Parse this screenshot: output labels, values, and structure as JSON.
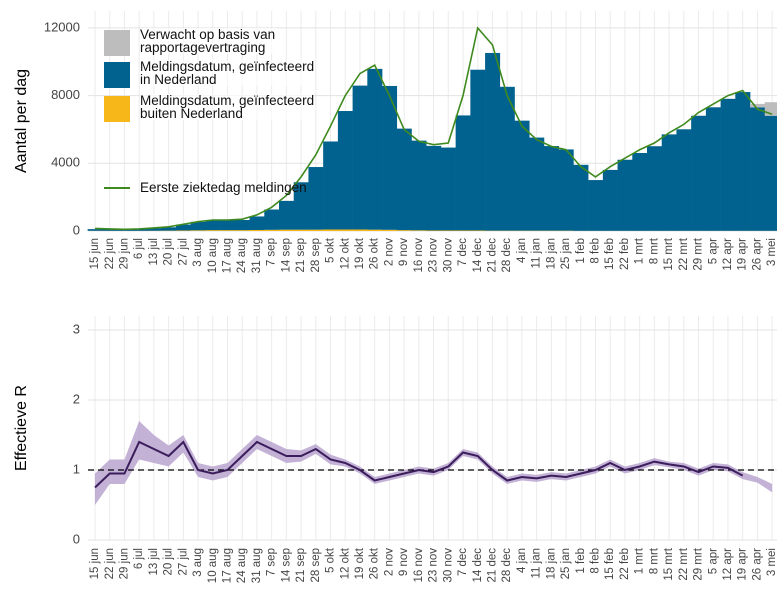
{
  "chart_data": [
    {
      "type": "bar",
      "stacked": true,
      "y_label": "Aantal per dag",
      "categories": [
        "15 jun",
        "22 jun",
        "29 jun",
        "6 jul",
        "13 jul",
        "20 jul",
        "27 jul",
        "3 aug",
        "10 aug",
        "17 aug",
        "24 aug",
        "31 aug",
        "7 sep",
        "14 sep",
        "21 sep",
        "28 sep",
        "5 okt",
        "12 okt",
        "19 okt",
        "26 okt",
        "2 nov",
        "9 nov",
        "16 nov",
        "23 nov",
        "30 nov",
        "7 dec",
        "14 dec",
        "21 dec",
        "28 dec",
        "4 jan",
        "11 jan",
        "18 jan",
        "25 jan",
        "1 feb",
        "8 feb",
        "15 feb",
        "22 feb",
        "1 mrt",
        "8 mrt",
        "15 mrt",
        "22 mrt",
        "29 mrt",
        "5 apr",
        "12 apr",
        "19 apr",
        "26 apr",
        "3 mei"
      ],
      "series": [
        {
          "name": "Verwacht op basis van\nrapportagevertraging",
          "color": "#bdbdbd",
          "values": [
            0,
            0,
            0,
            0,
            0,
            0,
            0,
            0,
            0,
            0,
            0,
            0,
            0,
            0,
            0,
            0,
            0,
            0,
            0,
            0,
            0,
            0,
            0,
            0,
            0,
            0,
            0,
            0,
            0,
            0,
            0,
            0,
            0,
            0,
            0,
            0,
            0,
            0,
            0,
            0,
            0,
            0,
            0,
            0,
            0,
            200,
            800
          ]
        },
        {
          "name": "Meldingsdatum, geïnfecteerd\nin Nederland",
          "color": "#01628f",
          "values": [
            100,
            100,
            80,
            100,
            150,
            200,
            350,
            500,
            600,
            600,
            600,
            800,
            1200,
            1700,
            2800,
            3700,
            5200,
            7000,
            8500,
            9500,
            8500,
            6000,
            5300,
            5000,
            4900,
            6800,
            9500,
            10500,
            8500,
            6500,
            5500,
            5000,
            4800,
            3900,
            3000,
            3600,
            4200,
            4600,
            5000,
            5700,
            6000,
            6800,
            7300,
            7800,
            8200,
            7300,
            6800
          ]
        },
        {
          "name": "Meldingsdatum, geïnfecteerd\nbuiten Nederland",
          "color": "#f7b718",
          "values": [
            10,
            10,
            10,
            10,
            15,
            20,
            30,
            40,
            50,
            50,
            50,
            60,
            70,
            80,
            80,
            80,
            90,
            90,
            90,
            80,
            70,
            50,
            40,
            30,
            30,
            30,
            30,
            20,
            20,
            20,
            20,
            20,
            20,
            10,
            10,
            10,
            10,
            10,
            10,
            10,
            10,
            10,
            10,
            10,
            10,
            10,
            10
          ]
        },
        {
          "name": "Eerste ziektedag meldingen",
          "color": "#3f8a1e",
          "kind": "line",
          "values": [
            150,
            120,
            100,
            120,
            180,
            250,
            400,
            550,
            650,
            650,
            700,
            950,
            1400,
            2100,
            3200,
            4500,
            6200,
            8000,
            9300,
            9800,
            8000,
            6000,
            5300,
            5100,
            5200,
            8000,
            12000,
            11000,
            8000,
            6200,
            5400,
            5000,
            4800,
            3800,
            3200,
            3800,
            4300,
            4800,
            5200,
            5800,
            6300,
            7000,
            7500,
            8000,
            8300,
            7200,
            6900
          ]
        }
      ],
      "ylim": [
        0,
        13000
      ],
      "yticks": [
        0,
        4000,
        8000,
        12000
      ],
      "grid": true
    },
    {
      "type": "line",
      "y_label": "Effectieve R",
      "categories": [
        "15 jun",
        "22 jun",
        "29 jun",
        "6 jul",
        "13 jul",
        "20 jul",
        "27 jul",
        "3 aug",
        "10 aug",
        "17 aug",
        "24 aug",
        "31 aug",
        "7 sep",
        "14 sep",
        "21 sep",
        "28 sep",
        "5 okt",
        "12 okt",
        "19 okt",
        "26 okt",
        "2 nov",
        "9 nov",
        "16 nov",
        "23 nov",
        "30 nov",
        "7 dec",
        "14 dec",
        "21 dec",
        "28 dec",
        "4 jan",
        "11 jan",
        "18 jan",
        "25 jan",
        "1 feb",
        "8 feb",
        "15 feb",
        "22 feb",
        "1 mrt",
        "8 mrt",
        "15 mrt",
        "22 mrt",
        "29 mrt",
        "5 apr",
        "12 apr",
        "19 apr",
        "26 apr",
        "3 mei"
      ],
      "values": [
        0.75,
        0.95,
        0.95,
        1.4,
        1.3,
        1.2,
        1.4,
        1.0,
        0.95,
        1.0,
        1.2,
        1.4,
        1.3,
        1.2,
        1.2,
        1.3,
        1.15,
        1.1,
        1.0,
        0.85,
        0.9,
        0.95,
        1.0,
        0.97,
        1.05,
        1.25,
        1.2,
        1.0,
        0.85,
        0.9,
        0.88,
        0.92,
        0.9,
        0.95,
        1.0,
        1.1,
        1.0,
        1.05,
        1.12,
        1.08,
        1.05,
        0.97,
        1.05,
        1.03,
        0.92,
        null,
        null
      ],
      "color": "#3b1d5c",
      "band": {
        "color": "#b9a5cf",
        "upper": [
          0.95,
          1.15,
          1.15,
          1.7,
          1.5,
          1.35,
          1.5,
          1.1,
          1.05,
          1.1,
          1.3,
          1.5,
          1.4,
          1.3,
          1.28,
          1.37,
          1.22,
          1.15,
          1.05,
          0.9,
          0.95,
          1.0,
          1.05,
          1.02,
          1.1,
          1.3,
          1.25,
          1.05,
          0.9,
          0.95,
          0.93,
          0.97,
          0.95,
          1.0,
          1.05,
          1.15,
          1.05,
          1.1,
          1.17,
          1.12,
          1.1,
          1.02,
          1.1,
          1.08,
          0.97,
          0.9,
          0.8
        ],
        "lower": [
          0.5,
          0.8,
          0.8,
          1.15,
          1.1,
          1.05,
          1.25,
          0.9,
          0.85,
          0.9,
          1.1,
          1.3,
          1.2,
          1.1,
          1.12,
          1.23,
          1.08,
          1.05,
          0.95,
          0.8,
          0.85,
          0.9,
          0.95,
          0.92,
          1.0,
          1.2,
          1.15,
          0.95,
          0.8,
          0.85,
          0.83,
          0.87,
          0.85,
          0.9,
          0.95,
          1.05,
          0.95,
          1.0,
          1.07,
          1.04,
          1.0,
          0.92,
          1.0,
          0.98,
          0.87,
          0.82,
          0.68
        ]
      },
      "reference": 1,
      "ylim": [
        0,
        3.2
      ],
      "yticks": [
        0,
        1,
        2,
        3
      ],
      "grid": true
    }
  ]
}
